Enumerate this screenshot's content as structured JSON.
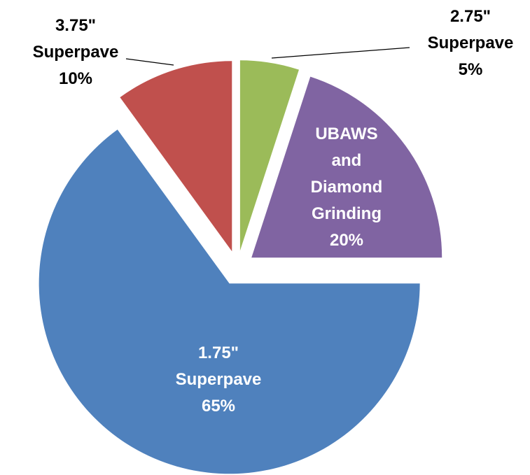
{
  "chart_data": {
    "type": "pie",
    "categories": [
      "2.75\" Superpave",
      "UBAWS and Diamond Grinding",
      "1.75\" Superpave",
      "3.75\" Superpave"
    ],
    "values": [
      5,
      20,
      65,
      10
    ],
    "value_labels": [
      "5%",
      "20%",
      "65%",
      "10%"
    ],
    "colors": [
      "#9BBB59",
      "#8064A2",
      "#4F81BD",
      "#C0504D"
    ]
  }
}
